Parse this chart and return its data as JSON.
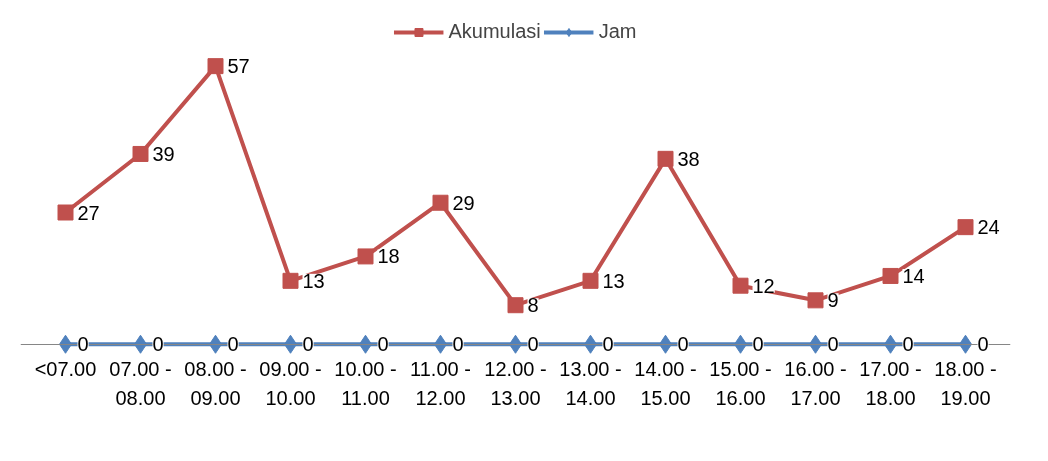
{
  "chart_data": {
    "type": "line",
    "categories": [
      "<07.00",
      "07.00 - 08.00",
      "08.00 - 09.00",
      "09.00 - 10.00",
      "10.00 - 11.00",
      "11.00 - 12.00",
      "12.00 - 13.00",
      "13.00 - 14.00",
      "14.00 - 15.00",
      "15.00 - 16.00",
      "16.00 - 17.00",
      "17.00 - 18.00",
      "18.00 - 19.00"
    ],
    "series": [
      {
        "name": "Akumulasi",
        "color": "#c0504d",
        "marker": "square",
        "values": [
          27,
          39,
          57,
          13,
          18,
          29,
          8,
          13,
          38,
          12,
          9,
          14,
          24
        ]
      },
      {
        "name": "Jam",
        "color": "#4f81bd",
        "marker": "diamond",
        "values": [
          0,
          0,
          0,
          0,
          0,
          0,
          0,
          0,
          0,
          0,
          0,
          0,
          0
        ]
      }
    ],
    "data_labels": true,
    "legend": "top",
    "grid": false
  }
}
